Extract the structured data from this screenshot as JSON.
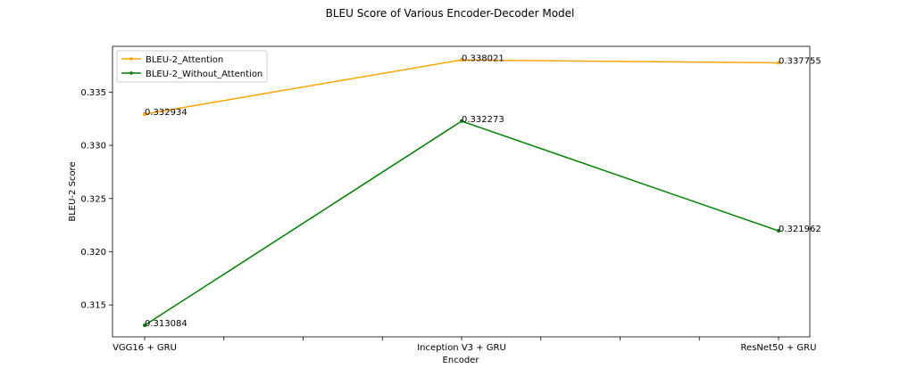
{
  "chart_data": {
    "type": "line",
    "title": "BLEU Score of Various Encoder-Decoder Model",
    "xlabel": "Encoder",
    "ylabel": "BLEU-2 Score",
    "categories": [
      "VGG16 + GRU",
      "Inception V3 + GRU",
      "ResNet50 + GRU"
    ],
    "ylim": [
      0.312,
      0.3393
    ],
    "yticks": [
      0.315,
      0.32,
      0.325,
      0.33,
      0.335
    ],
    "ytick_labels": [
      "0.315",
      "0.320",
      "0.325",
      "0.330",
      "0.335"
    ],
    "x_minor_ticks": [
      0.25,
      0.5,
      0.75,
      1.25,
      1.5,
      1.75
    ],
    "grid": false,
    "legend_position": "top-left",
    "series": [
      {
        "name": "BLEU-2_Attention",
        "color": "#FFA500",
        "values": [
          0.332934,
          0.338021,
          0.337755
        ],
        "labels": [
          "0.332934",
          "0.338021",
          "0.337755"
        ]
      },
      {
        "name": "BLEU-2_Without_Attention",
        "color": "#008000",
        "values": [
          0.313084,
          0.332273,
          0.321962
        ],
        "labels": [
          "0.313084",
          "0.332273",
          "0.321962"
        ]
      }
    ]
  }
}
